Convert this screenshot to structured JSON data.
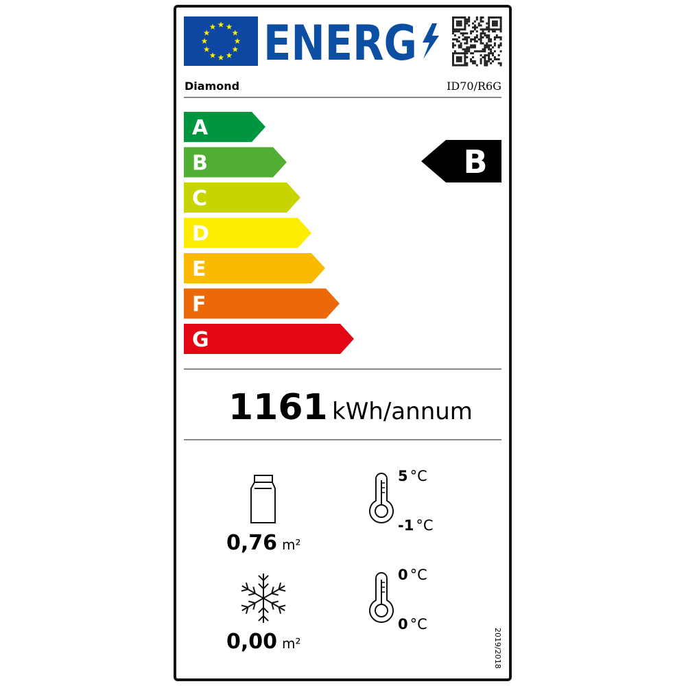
{
  "header": {
    "logo_text": "ENERG",
    "eu_flag_colors": {
      "blue": "#0e47a1",
      "star": "#ffed00"
    },
    "brand_color": "#0b4ea2",
    "qr_icon": "qr-code"
  },
  "supplier": "Diamond",
  "model": "ID70/R6G",
  "scale": [
    {
      "letter": "A",
      "color": "#009640"
    },
    {
      "letter": "B",
      "color": "#52ae32"
    },
    {
      "letter": "C",
      "color": "#c8d400"
    },
    {
      "letter": "D",
      "color": "#ffed00"
    },
    {
      "letter": "E",
      "color": "#fbba00"
    },
    {
      "letter": "F",
      "color": "#eb6909"
    },
    {
      "letter": "G",
      "color": "#e30613"
    }
  ],
  "rating": {
    "letter": "B"
  },
  "consumption": {
    "value": "1161",
    "unit": "kWh/annum"
  },
  "chilled_area": {
    "value": "0,76",
    "unit": "m²",
    "icon": "milk-carton"
  },
  "frozen_area": {
    "value": "0,00",
    "unit": "m²",
    "icon": "snowflake"
  },
  "chilled_temp": {
    "max": "5",
    "min": "-1",
    "unit": "°C",
    "icon": "thermometer"
  },
  "frozen_temp": {
    "max": "0",
    "min": "0",
    "unit": "°C",
    "icon": "thermometer"
  },
  "regulation": "2019/2018"
}
